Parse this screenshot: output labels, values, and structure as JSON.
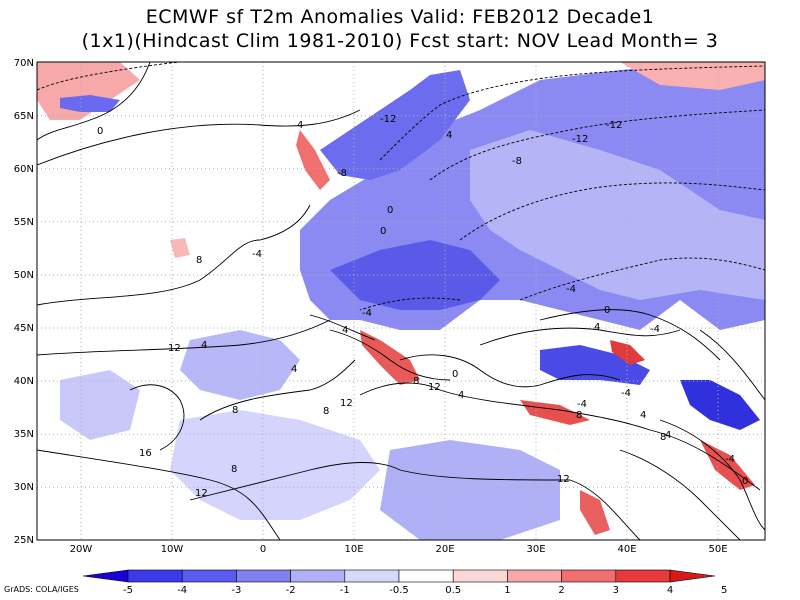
{
  "title": {
    "line1": "ECMWF sf T2m Anomalies Valid: FEB2012 Decade1",
    "line2": "(1x1)(Hindcast Clim 1981-2010) Fcst start: NOV  Lead Month= 3"
  },
  "axes": {
    "lat_labels": [
      "70N",
      "65N",
      "60N",
      "55N",
      "50N",
      "45N",
      "40N",
      "35N",
      "30N",
      "25N"
    ],
    "lon_labels": [
      "20W",
      "10W",
      "0",
      "10E",
      "20E",
      "30E",
      "40E",
      "50E"
    ]
  },
  "contour_labels": [
    "4",
    "0",
    "-12",
    "-4",
    "4",
    "-8",
    "-12",
    "-12",
    "-8",
    "0",
    "0",
    "8",
    "4",
    "-4",
    "-4",
    "-4",
    "0",
    "4",
    "4",
    "12",
    "4",
    "8",
    "0",
    "12",
    "4",
    "4",
    "12",
    "8",
    "8",
    "8",
    "-4",
    "16",
    "12",
    "12",
    "-4",
    "4",
    "8",
    "-4",
    "0",
    "8"
  ],
  "colorbar": {
    "ticks": [
      "-5",
      "-4",
      "-3",
      "-2",
      "-1",
      "-0.5",
      "0.5",
      "1",
      "2",
      "3",
      "4",
      "5"
    ],
    "colors": [
      "#1a00d6",
      "#3a3ae8",
      "#5a5af0",
      "#8080f0",
      "#b0b0f8",
      "#d8d8fc",
      "#ffffff",
      "#fcd8d8",
      "#f8a8a8",
      "#f07070",
      "#e83a3a",
      "#d61a1a"
    ]
  },
  "palette": {
    "deep_blue": "#3a3ae0",
    "mid_blue": "#7070ec",
    "light_blue": "#b4b4f6",
    "pale_blue": "#dadafc",
    "pale_red": "#fad6d6",
    "mid_red": "#f08080",
    "deep_red": "#e03a3a"
  },
  "credit": "GrADS: COLA/IGES"
}
